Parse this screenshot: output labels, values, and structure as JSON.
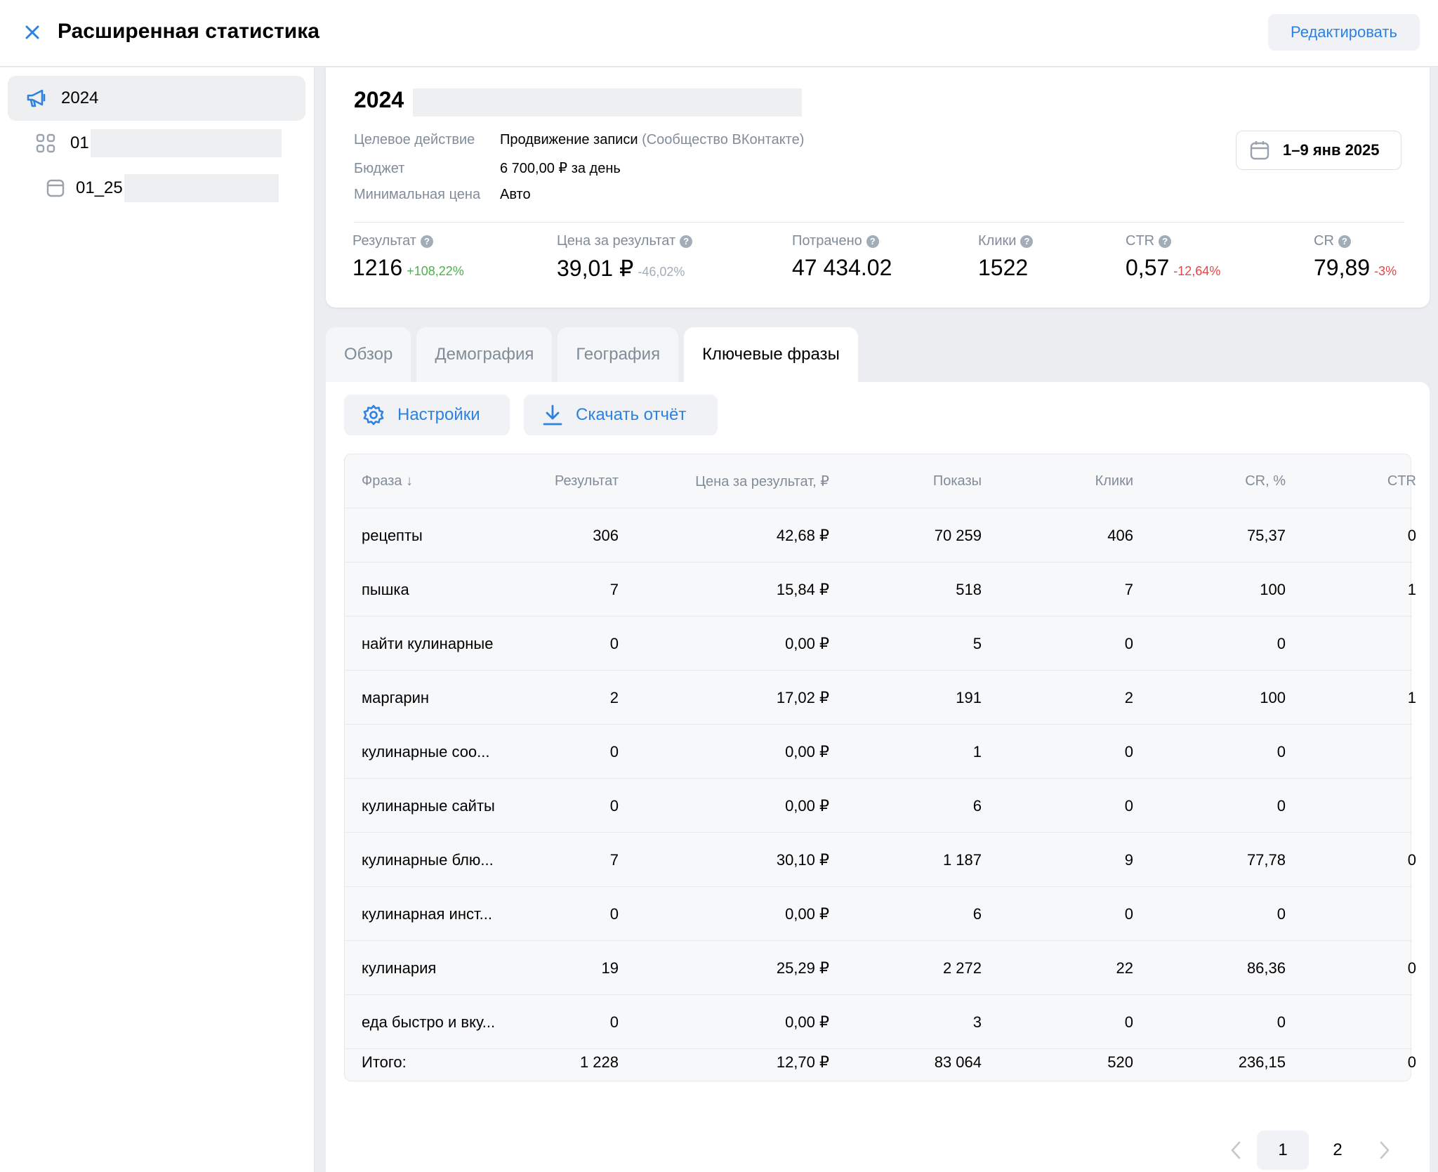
{
  "header": {
    "title": "Расширенная статистика",
    "edit_label": "Редактировать"
  },
  "sidebar": {
    "items": [
      {
        "label": "2024",
        "icon": "megaphone-icon"
      },
      {
        "label": "01",
        "icon": "grid-icon"
      },
      {
        "label": "01_25",
        "icon": "ad-card-icon"
      }
    ]
  },
  "summary": {
    "title": "2024",
    "meta": [
      {
        "key": "Целевое действие",
        "value": "Продвижение записи",
        "extra": "(Сообщество ВКонтакте)"
      },
      {
        "key": "Бюджет",
        "value": "6 700,00 ₽ за день",
        "extra": ""
      },
      {
        "key": "Минимальная цена",
        "value": "Авто",
        "extra": ""
      }
    ],
    "date_range": "1–9 янв 2025",
    "stats": [
      {
        "label": "Результат",
        "value": "1216",
        "delta": "+108,22%",
        "trend": "pos"
      },
      {
        "label": "Цена за результат",
        "value": "39,01 ₽",
        "delta": "-46,02%",
        "trend": "neutral"
      },
      {
        "label": "Потрачено",
        "value": "47 434.02",
        "delta": "",
        "trend": ""
      },
      {
        "label": "Клики",
        "value": "1522",
        "delta": "",
        "trend": ""
      },
      {
        "label": "CTR",
        "value": "0,57",
        "delta": "-12,64%",
        "trend": "neg"
      },
      {
        "label": "CR",
        "value": "79,89",
        "delta": "-3%",
        "trend": "neg"
      }
    ]
  },
  "tabs": [
    "Обзор",
    "Демография",
    "География",
    "Ключевые фразы"
  ],
  "toolbar": {
    "settings_label": "Настройки",
    "download_label": "Скачать отчёт"
  },
  "table": {
    "columns": [
      "Фраза ↓",
      "Результат",
      "Цена за результат, ₽",
      "Показы",
      "Клики",
      "CR, %",
      "CTR"
    ],
    "rows": [
      [
        "рецепты",
        "306",
        "42,68 ₽",
        "70 259",
        "406",
        "75,37",
        "0"
      ],
      [
        "пышка",
        "7",
        "15,84 ₽",
        "518",
        "7",
        "100",
        "1"
      ],
      [
        "найти кулинарные",
        "0",
        "0,00 ₽",
        "5",
        "0",
        "0",
        ""
      ],
      [
        "маргарин",
        "2",
        "17,02 ₽",
        "191",
        "2",
        "100",
        "1"
      ],
      [
        "кулинарные соо...",
        "0",
        "0,00 ₽",
        "1",
        "0",
        "0",
        ""
      ],
      [
        "кулинарные сайты",
        "0",
        "0,00 ₽",
        "6",
        "0",
        "0",
        ""
      ],
      [
        "кулинарные блю...",
        "7",
        "30,10 ₽",
        "1 187",
        "9",
        "77,78",
        "0"
      ],
      [
        "кулинарная инст...",
        "0",
        "0,00 ₽",
        "6",
        "0",
        "0",
        ""
      ],
      [
        "кулинария",
        "19",
        "25,29 ₽",
        "2 272",
        "22",
        "86,36",
        "0"
      ],
      [
        "еда быстро и вку...",
        "0",
        "0,00 ₽",
        "3",
        "0",
        "0",
        ""
      ]
    ],
    "total": [
      "Итого:",
      "1 228",
      "12,70 ₽",
      "83 064",
      "520",
      "236,15",
      "0"
    ]
  },
  "pagination": {
    "pages": [
      "1",
      "2"
    ],
    "current": "1"
  },
  "colors": {
    "accent": "#2d81e0",
    "positive": "#4bb34b",
    "negative": "#e64646",
    "muted": "#818c99"
  }
}
